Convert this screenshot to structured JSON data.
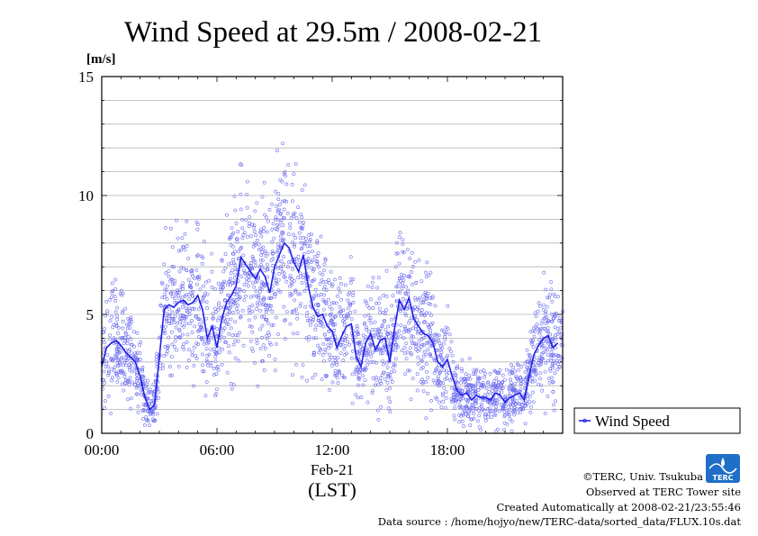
{
  "chart_data": {
    "type": "scatter",
    "title": "Wind Speed at 29.5m / 2008-02-21",
    "ylabel": "[m/s]",
    "xlabel_date": "Feb-21",
    "xlabel": "(LST)",
    "x_ticks": [
      "00:00",
      "06:00",
      "12:00",
      "18:00"
    ],
    "y_ticks": [
      "0",
      "5",
      "10",
      "15"
    ],
    "xlim_hours": [
      0,
      24
    ],
    "ylim": [
      0,
      15
    ],
    "grid": true,
    "legend_position": "outside-right-bottom",
    "series": [
      {
        "name": "Wind Speed",
        "color": "#1f1fe6",
        "x_hours": [
          0.0,
          0.25,
          0.5,
          0.75,
          1.0,
          1.25,
          1.5,
          1.75,
          2.0,
          2.25,
          2.5,
          2.75,
          3.0,
          3.25,
          3.5,
          3.75,
          4.0,
          4.25,
          4.5,
          4.75,
          5.0,
          5.25,
          5.5,
          5.75,
          6.0,
          6.25,
          6.5,
          6.75,
          7.0,
          7.25,
          7.5,
          7.75,
          8.0,
          8.25,
          8.5,
          8.75,
          9.0,
          9.25,
          9.5,
          9.75,
          10.0,
          10.25,
          10.5,
          10.75,
          11.0,
          11.25,
          11.5,
          11.75,
          12.0,
          12.25,
          12.5,
          12.75,
          13.0,
          13.25,
          13.5,
          13.75,
          14.0,
          14.25,
          14.5,
          14.75,
          15.0,
          15.25,
          15.5,
          15.75,
          16.0,
          16.25,
          16.5,
          16.75,
          17.0,
          17.25,
          17.5,
          17.75,
          18.0,
          18.25,
          18.5,
          18.75,
          19.0,
          19.25,
          19.5,
          19.75,
          20.0,
          20.25,
          20.5,
          20.75,
          21.0,
          21.25,
          21.5,
          21.75,
          22.0,
          22.25,
          22.5,
          22.75,
          23.0,
          23.25,
          23.5,
          23.75
        ],
        "values": [
          2.8,
          3.6,
          3.8,
          3.9,
          3.7,
          3.4,
          3.2,
          3.0,
          2.4,
          1.5,
          1.0,
          1.2,
          3.2,
          5.2,
          5.4,
          5.3,
          5.5,
          5.6,
          5.4,
          5.5,
          5.8,
          5.2,
          4.0,
          4.5,
          3.6,
          4.8,
          5.5,
          5.8,
          6.2,
          7.4,
          7.1,
          6.8,
          6.5,
          6.9,
          6.6,
          5.9,
          7.0,
          7.5,
          8.0,
          7.8,
          7.2,
          6.8,
          7.5,
          6.2,
          5.3,
          4.9,
          5.0,
          4.5,
          4.3,
          3.6,
          4.1,
          4.5,
          4.6,
          3.2,
          2.8,
          3.8,
          4.2,
          3.5,
          3.9,
          4.0,
          3.0,
          4.4,
          5.6,
          5.2,
          5.7,
          4.8,
          4.5,
          4.2,
          4.1,
          3.8,
          3.0,
          2.8,
          3.1,
          2.4,
          1.8,
          1.6,
          1.7,
          1.4,
          1.6,
          1.5,
          1.5,
          1.4,
          1.7,
          1.6,
          1.3,
          1.5,
          1.6,
          1.7,
          1.4,
          2.4,
          3.3,
          3.7,
          4.0,
          4.1,
          3.6,
          3.8
        ]
      }
    ]
  },
  "legend": {
    "label": "Wind Speed"
  },
  "footer": {
    "line1": "©TERC, Univ. Tsukuba",
    "line2": "Observed at TERC Tower site",
    "line3": "Created Automatically at 2008-02-21/23:55:46",
    "line4": "Data source : /home/hojyo/new/TERC-data/sorted_data/FLUX.10s.dat",
    "logo_text": "TERC"
  }
}
